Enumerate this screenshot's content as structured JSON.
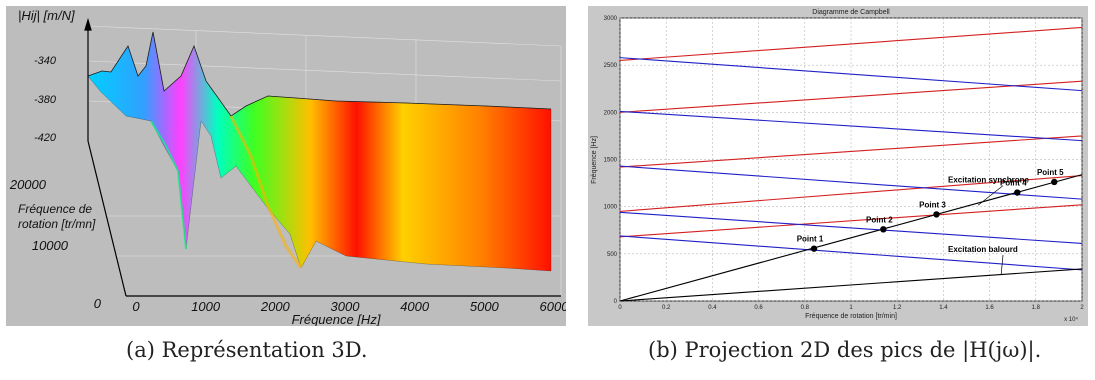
{
  "figure": {
    "caption_a": "(a) Représentation 3D.",
    "caption_b": "(b) Projection 2D des pics de |H(jω)|."
  },
  "chart_data": [
    {
      "type": "surface",
      "zlabel": "|Hij| [m/N]",
      "ylabel": "Fréquence de rotation [tr/mn]",
      "xlabel": "Fréquence  [Hz]",
      "z_ticks": [
        "-340",
        "-380",
        "-420"
      ],
      "y_ticks": [
        "20000",
        "10000",
        "0"
      ],
      "x_ticks": [
        "0",
        "1000",
        "2000",
        "3000",
        "4000",
        "5000",
        "6000"
      ],
      "xlim": [
        0,
        6000
      ],
      "ylim": [
        0,
        20000
      ],
      "colormap": "hsv rainbow",
      "ridges_hz": [
        700,
        1150,
        2500,
        2700
      ]
    },
    {
      "type": "line",
      "title": "Diagramme de Campbell",
      "xlabel": "Fréquence de rotation [tr/min]",
      "ylabel": "Fréquence [Hz]",
      "x_multiplier": "x 10⁴",
      "xlim": [
        0,
        2
      ],
      "ylim": [
        0,
        3000
      ],
      "x_ticks": [
        "0",
        "0.2",
        "0.4",
        "0.6",
        "0.8",
        "1",
        "1.2",
        "1.4",
        "1.6",
        "1.8",
        "2"
      ],
      "y_ticks": [
        "0",
        "500",
        "1000",
        "1500",
        "2000",
        "2500",
        "3000"
      ],
      "grid": true,
      "colors": {
        "forward": "#d42020",
        "backward": "#2020c8",
        "excitation": "#000000"
      },
      "series": [
        {
          "color": "forward",
          "x": [
            0,
            2
          ],
          "y": [
            2550,
            2900
          ]
        },
        {
          "color": "forward",
          "x": [
            0,
            2
          ],
          "y": [
            2000,
            2330
          ]
        },
        {
          "color": "forward",
          "x": [
            0,
            2
          ],
          "y": [
            1420,
            1750
          ]
        },
        {
          "color": "forward",
          "x": [
            0,
            2
          ],
          "y": [
            950,
            1330
          ]
        },
        {
          "color": "forward",
          "x": [
            0,
            2
          ],
          "y": [
            680,
            1020
          ]
        },
        {
          "color": "backward",
          "x": [
            0,
            2
          ],
          "y": [
            2580,
            2230
          ]
        },
        {
          "color": "backward",
          "x": [
            0,
            2
          ],
          "y": [
            2010,
            1700
          ]
        },
        {
          "color": "backward",
          "x": [
            0,
            2
          ],
          "y": [
            1430,
            1080
          ]
        },
        {
          "color": "backward",
          "x": [
            0,
            2
          ],
          "y": [
            940,
            610
          ]
        },
        {
          "color": "backward",
          "x": [
            0,
            2
          ],
          "y": [
            690,
            330
          ]
        },
        {
          "color": "excitation",
          "x": [
            0,
            2
          ],
          "y": [
            0,
            1340
          ]
        },
        {
          "color": "excitation",
          "x": [
            0,
            2
          ],
          "y": [
            0,
            340
          ]
        }
      ],
      "points": [
        {
          "label": "Point 1",
          "x": 0.84,
          "y": 555
        },
        {
          "label": "Point 2",
          "x": 1.14,
          "y": 760
        },
        {
          "label": "Point 3",
          "x": 1.37,
          "y": 918
        },
        {
          "label": "Point 4",
          "x": 1.72,
          "y": 1150
        },
        {
          "label": "Point 5",
          "x": 1.88,
          "y": 1262
        }
      ],
      "annotations": [
        {
          "text": "Excitation synchrone",
          "x": 1.42,
          "y": 1255,
          "to_x": 1.55,
          "to_y": 1015
        },
        {
          "text": "Excitation balourd",
          "x": 1.42,
          "y": 520,
          "to_x": 1.65,
          "to_y": 280
        }
      ]
    }
  ]
}
